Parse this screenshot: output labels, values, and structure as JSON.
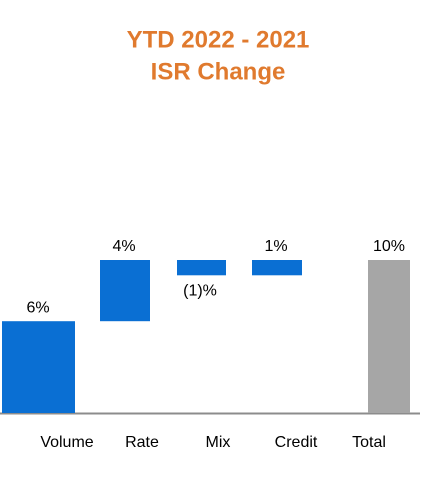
{
  "chart_data": {
    "type": "waterfall",
    "title": [
      "YTD 2022 - 2021",
      "ISR Change"
    ],
    "categories": [
      "Volume",
      "Rate",
      "Mix",
      "Credit",
      "Total"
    ],
    "values": [
      6,
      4,
      -1,
      1,
      10
    ],
    "value_labels": [
      "6%",
      "4%",
      "(1)%",
      "1%",
      "10%"
    ],
    "colors": [
      "#0a6fd3",
      "#0a6fd3",
      "#0a6fd3",
      "#0a6fd3",
      "#a6a6a6"
    ]
  }
}
